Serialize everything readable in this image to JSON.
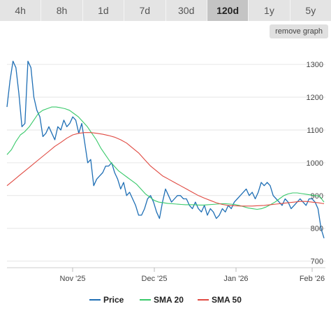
{
  "timeframes": [
    "4h",
    "8h",
    "1d",
    "7d",
    "30d",
    "120d",
    "1y",
    "5y"
  ],
  "active_timeframe": "120d",
  "remove_graph_label": "remove graph",
  "colors": {
    "price": "#1f6fb5",
    "sma20": "#38c96a",
    "sma50": "#e04a42",
    "grid": "#e6e6e6"
  },
  "chart_data": {
    "type": "line",
    "x_labels": [
      "Nov '25",
      "Dec '25",
      "Jan '26",
      "Feb '26"
    ],
    "y_ticks": [
      700,
      800,
      900,
      1000,
      1100,
      1200,
      1300
    ],
    "ylim": [
      680,
      1360
    ],
    "grid": true,
    "legend_placement": "bottom",
    "series": [
      {
        "name": "Price",
        "key": "price",
        "values": [
          1170,
          1250,
          1310,
          1290,
          1210,
          1110,
          1120,
          1310,
          1290,
          1200,
          1160,
          1140,
          1080,
          1090,
          1110,
          1090,
          1070,
          1110,
          1100,
          1130,
          1110,
          1120,
          1140,
          1130,
          1090,
          1120,
          1060,
          1000,
          1010,
          930,
          950,
          960,
          970,
          990,
          990,
          1000,
          970,
          950,
          920,
          940,
          900,
          910,
          890,
          870,
          840,
          840,
          860,
          890,
          900,
          880,
          850,
          830,
          880,
          920,
          900,
          880,
          890,
          900,
          900,
          890,
          890,
          870,
          860,
          880,
          860,
          850,
          870,
          840,
          860,
          850,
          830,
          840,
          860,
          850,
          870,
          860,
          880,
          890,
          900,
          910,
          920,
          900,
          910,
          890,
          910,
          940,
          930,
          940,
          930,
          900,
          890,
          880,
          870,
          890,
          880,
          860,
          870,
          880,
          890,
          880,
          870,
          890,
          890,
          880,
          860,
          800,
          770
        ],
        "note": ""
      },
      {
        "name": "SMA 20",
        "key": "sma20",
        "values": [
          1025,
          1040,
          1065,
          1085,
          1095,
          1110,
          1130,
          1150,
          1160,
          1165,
          1170,
          1170,
          1168,
          1165,
          1160,
          1150,
          1140,
          1125,
          1110,
          1090,
          1070,
          1045,
          1025,
          1005,
          990,
          975,
          965,
          955,
          945,
          935,
          920,
          905,
          895,
          885,
          880,
          878,
          876,
          875,
          874,
          873,
          872,
          872,
          872,
          871,
          871,
          872,
          873,
          874,
          875,
          875,
          874,
          873,
          870,
          866,
          862,
          860,
          858,
          860,
          865,
          872,
          880,
          890,
          900,
          905,
          908,
          908,
          906,
          904,
          902,
          900,
          898,
          880
        ],
        "note": ""
      },
      {
        "name": "SMA 50",
        "key": "sma50",
        "values": [
          930,
          945,
          960,
          975,
          990,
          1005,
          1020,
          1035,
          1050,
          1062,
          1075,
          1085,
          1090,
          1092,
          1092,
          1090,
          1087,
          1083,
          1078,
          1070,
          1060,
          1045,
          1030,
          1010,
          990,
          975,
          960,
          950,
          940,
          930,
          920,
          910,
          900,
          892,
          885,
          878,
          873,
          870,
          869,
          868,
          868,
          868,
          869,
          870,
          872,
          874,
          876,
          878,
          880,
          882,
          882,
          880,
          878,
          875
        ],
        "note": ""
      }
    ],
    "legend": [
      {
        "label": "Price",
        "key": "price"
      },
      {
        "label": "SMA 20",
        "key": "sma20"
      },
      {
        "label": "SMA 50",
        "key": "sma50"
      }
    ]
  }
}
